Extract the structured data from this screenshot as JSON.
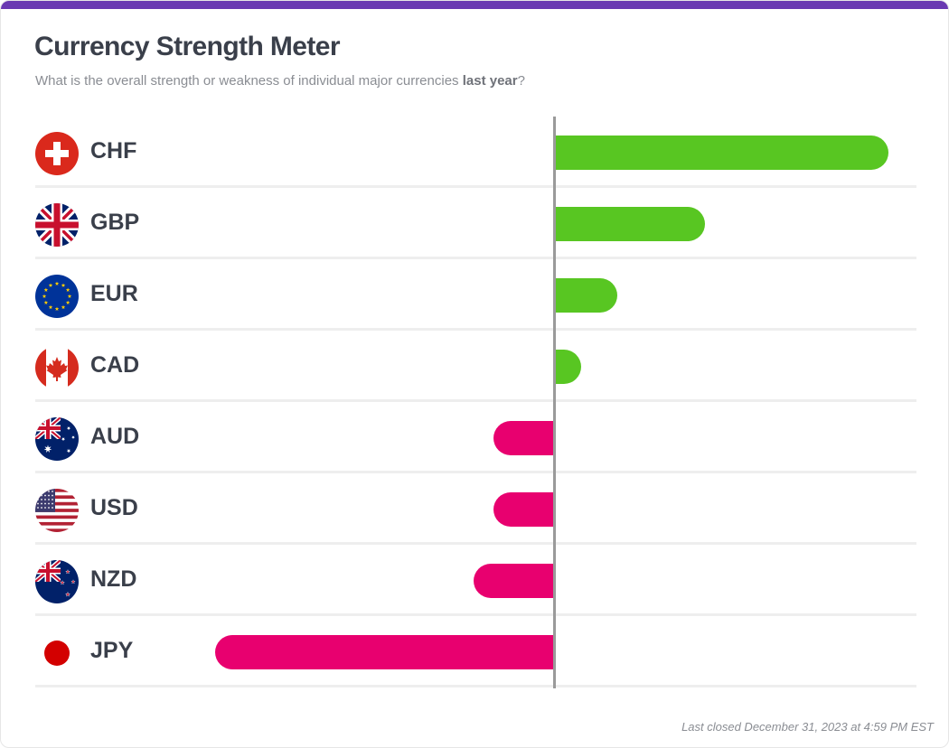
{
  "header": {
    "title": "Currency Strength Meter",
    "subtitle_prefix": "What is the overall strength or weakness of individual major currencies ",
    "subtitle_emphasis": "last year",
    "subtitle_suffix": "?"
  },
  "footer": {
    "last_closed": "Last closed December 31, 2023 at 4:59 PM EST"
  },
  "colors": {
    "positive": "#58c622",
    "negative": "#e8006f",
    "accent_bar": "#6a3ab2"
  },
  "chart_data": {
    "type": "bar",
    "orientation": "horizontal",
    "title": "Currency Strength Meter",
    "categories": [
      "CHF",
      "GBP",
      "EUR",
      "CAD",
      "AUD",
      "USD",
      "NZD",
      "JPY"
    ],
    "values": [
      100,
      45,
      19,
      8,
      -18,
      -18,
      -24,
      -101
    ],
    "xlim": [
      -101,
      101
    ],
    "grid": false,
    "legend": "none"
  },
  "flags": [
    "swiss-flag-icon",
    "uk-flag-icon",
    "eu-flag-icon",
    "canada-flag-icon",
    "australia-flag-icon",
    "us-flag-icon",
    "new-zealand-flag-icon",
    "japan-flag-icon"
  ]
}
